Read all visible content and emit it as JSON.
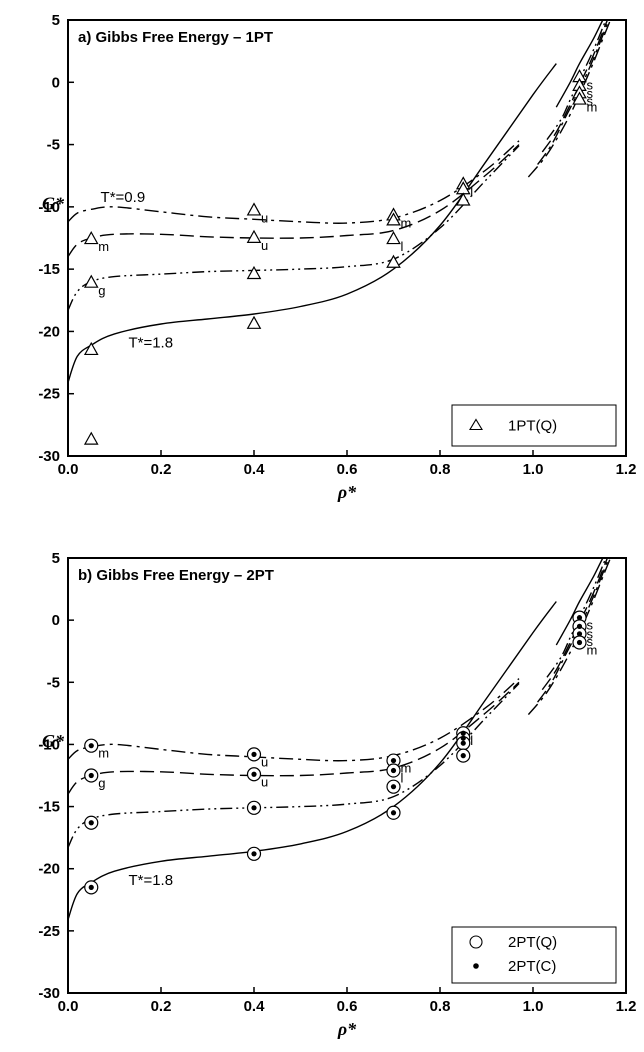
{
  "chart_data": [
    {
      "type": "line",
      "title": "a) Gibbs Free Energy – 1PT",
      "xlabel": "ρ*",
      "ylabel": "G*",
      "xlim": [
        0.0,
        1.2
      ],
      "ylim": [
        -30,
        5
      ],
      "xticks": [
        "0.0",
        "0.2",
        "0.4",
        "0.6",
        "0.8",
        "1.0",
        "1.2"
      ],
      "yticks": [
        "5",
        "0",
        "-5",
        "-10",
        "-15",
        "-20",
        "-25",
        "-30"
      ],
      "grid": false,
      "legend_position": "bottom-right",
      "legend": [
        {
          "name": "1PT(Q)",
          "marker": "triangle"
        }
      ],
      "annotations": [
        {
          "text": "T*=0.9",
          "x": 0.07,
          "y": -9.6
        },
        {
          "text": "T*=1.8",
          "x": 0.13,
          "y": -21.3
        }
      ],
      "curves": [
        {
          "style": "dash-dot",
          "x": [
            0.0,
            0.02,
            0.05,
            0.1,
            0.2,
            0.3,
            0.4,
            0.5,
            0.6,
            0.7,
            0.8,
            0.9,
            0.97
          ],
          "y": [
            -11.2,
            -10.5,
            -10.2,
            -10.0,
            -10.4,
            -10.8,
            -11.0,
            -11.2,
            -11.3,
            -10.9,
            -9.5,
            -7.0,
            -4.7
          ]
        },
        {
          "style": "dash",
          "x": [
            0.0,
            0.02,
            0.05,
            0.1,
            0.2,
            0.3,
            0.4,
            0.5,
            0.6,
            0.7,
            0.8,
            0.9,
            0.97
          ],
          "y": [
            -14.0,
            -13.0,
            -12.5,
            -12.2,
            -12.2,
            -12.4,
            -12.5,
            -12.5,
            -12.3,
            -11.9,
            -10.3,
            -7.4,
            -5.0
          ]
        },
        {
          "style": "dash-dot-dot",
          "x": [
            0.0,
            0.02,
            0.05,
            0.1,
            0.2,
            0.3,
            0.4,
            0.5,
            0.6,
            0.7,
            0.8,
            0.9,
            0.97
          ],
          "y": [
            -18.3,
            -16.8,
            -16.0,
            -15.6,
            -15.4,
            -15.2,
            -15.1,
            -15.0,
            -14.8,
            -14.2,
            -11.7,
            -7.8,
            -5.1
          ]
        },
        {
          "style": "solid",
          "x": [
            0.0,
            0.02,
            0.05,
            0.1,
            0.2,
            0.3,
            0.4,
            0.5,
            0.6,
            0.7,
            0.8,
            0.9,
            1.0,
            1.05
          ],
          "y": [
            -24.1,
            -22.0,
            -21.1,
            -20.2,
            -19.4,
            -19.0,
            -18.6,
            -18.0,
            -17.0,
            -15.0,
            -11.5,
            -6.3,
            -1.0,
            1.5
          ]
        },
        {
          "style": "dash-dot",
          "x": [
            0.99,
            1.03,
            1.07,
            1.1,
            1.13,
            1.16,
            1.18
          ],
          "y": [
            -7.6,
            -5.8,
            -3.3,
            -1.0,
            1.6,
            4.4,
            6.2
          ]
        },
        {
          "style": "dash-dot",
          "x": [
            1.01,
            1.04,
            1.07,
            1.1,
            1.13,
            1.16,
            1.18
          ],
          "y": [
            -6.6,
            -5.0,
            -2.8,
            -0.6,
            1.9,
            4.7,
            6.5
          ]
        },
        {
          "style": "dash",
          "x": [
            1.02,
            1.05,
            1.08,
            1.1,
            1.13,
            1.16,
            1.18
          ],
          "y": [
            -5.6,
            -4.0,
            -1.8,
            -0.2,
            2.2,
            5.0,
            6.8
          ]
        },
        {
          "style": "dash-dot-dot",
          "x": [
            1.03,
            1.06,
            1.08,
            1.1,
            1.13,
            1.16,
            1.18
          ],
          "y": [
            -4.6,
            -3.0,
            -1.4,
            0.2,
            2.6,
            5.3,
            7.1
          ]
        },
        {
          "style": "solid",
          "x": [
            1.05,
            1.08,
            1.1,
            1.13,
            1.15,
            1.17
          ],
          "y": [
            -2.0,
            0.0,
            1.5,
            3.5,
            5.0,
            6.5
          ]
        }
      ],
      "series": [
        {
          "name": "1PT(Q)",
          "marker": "triangle",
          "points": [
            {
              "x": 0.05,
              "y": -12.6,
              "label": "m"
            },
            {
              "x": 0.05,
              "y": -16.1,
              "label": "g"
            },
            {
              "x": 0.05,
              "y": -21.5,
              "label": ""
            },
            {
              "x": 0.05,
              "y": -28.7,
              "label": ""
            },
            {
              "x": 0.4,
              "y": -10.3,
              "label": "u"
            },
            {
              "x": 0.4,
              "y": -12.5,
              "label": "u"
            },
            {
              "x": 0.4,
              "y": -15.4,
              "label": ""
            },
            {
              "x": 0.4,
              "y": -19.4,
              "label": ""
            },
            {
              "x": 0.7,
              "y": -10.7,
              "label": "m"
            },
            {
              "x": 0.7,
              "y": -11.1,
              "label": ""
            },
            {
              "x": 0.7,
              "y": -12.6,
              "label": "l"
            },
            {
              "x": 0.7,
              "y": -14.5,
              "label": ""
            },
            {
              "x": 0.85,
              "y": -8.2,
              "label": "l"
            },
            {
              "x": 0.85,
              "y": -8.6,
              "label": ""
            },
            {
              "x": 0.85,
              "y": -9.5,
              "label": ""
            },
            {
              "x": 1.1,
              "y": 0.4,
              "label": "s"
            },
            {
              "x": 1.1,
              "y": -0.3,
              "label": "s"
            },
            {
              "x": 1.1,
              "y": -0.9,
              "label": "s"
            },
            {
              "x": 1.1,
              "y": -1.4,
              "label": "m"
            }
          ]
        }
      ]
    },
    {
      "type": "line",
      "title": "b) Gibbs Free Energy – 2PT",
      "xlabel": "ρ*",
      "ylabel": "G*",
      "xlim": [
        0.0,
        1.2
      ],
      "ylim": [
        -30,
        5
      ],
      "xticks": [
        "0.0",
        "0.2",
        "0.4",
        "0.6",
        "0.8",
        "1.0",
        "1.2"
      ],
      "yticks": [
        "5",
        "0",
        "-5",
        "-10",
        "-15",
        "-20",
        "-25",
        "-30"
      ],
      "grid": false,
      "legend_position": "bottom-right",
      "legend": [
        {
          "name": "2PT(Q)",
          "marker": "open-circle"
        },
        {
          "name": "2PT(C)",
          "marker": "dot"
        }
      ],
      "annotations": [
        {
          "text": "T*=1.8",
          "x": 0.13,
          "y": -21.3
        }
      ],
      "curves": [
        {
          "style": "dash-dot",
          "x": [
            0.0,
            0.02,
            0.05,
            0.1,
            0.2,
            0.3,
            0.4,
            0.5,
            0.6,
            0.7,
            0.8,
            0.9,
            0.97
          ],
          "y": [
            -11.2,
            -10.5,
            -10.2,
            -10.0,
            -10.4,
            -10.8,
            -11.0,
            -11.2,
            -11.3,
            -10.9,
            -9.5,
            -7.0,
            -4.7
          ]
        },
        {
          "style": "dash",
          "x": [
            0.0,
            0.02,
            0.05,
            0.1,
            0.2,
            0.3,
            0.4,
            0.5,
            0.6,
            0.7,
            0.8,
            0.9,
            0.97
          ],
          "y": [
            -14.0,
            -13.0,
            -12.5,
            -12.2,
            -12.2,
            -12.4,
            -12.5,
            -12.5,
            -12.3,
            -11.9,
            -10.3,
            -7.4,
            -5.0
          ]
        },
        {
          "style": "dash-dot-dot",
          "x": [
            0.0,
            0.02,
            0.05,
            0.1,
            0.2,
            0.3,
            0.4,
            0.5,
            0.6,
            0.7,
            0.8,
            0.9,
            0.97
          ],
          "y": [
            -18.3,
            -16.8,
            -16.0,
            -15.6,
            -15.4,
            -15.2,
            -15.1,
            -15.0,
            -14.8,
            -14.2,
            -11.7,
            -7.8,
            -5.1
          ]
        },
        {
          "style": "solid",
          "x": [
            0.0,
            0.02,
            0.05,
            0.1,
            0.2,
            0.3,
            0.4,
            0.5,
            0.6,
            0.7,
            0.8,
            0.9,
            1.0,
            1.05
          ],
          "y": [
            -24.1,
            -22.0,
            -21.1,
            -20.2,
            -19.4,
            -19.0,
            -18.6,
            -18.0,
            -17.0,
            -15.0,
            -11.5,
            -6.3,
            -1.0,
            1.5
          ]
        },
        {
          "style": "dash-dot",
          "x": [
            0.99,
            1.03,
            1.07,
            1.1,
            1.13,
            1.16,
            1.18
          ],
          "y": [
            -7.6,
            -5.8,
            -3.3,
            -1.0,
            1.6,
            4.4,
            6.2
          ]
        },
        {
          "style": "dash-dot",
          "x": [
            1.01,
            1.04,
            1.07,
            1.1,
            1.13,
            1.16,
            1.18
          ],
          "y": [
            -6.6,
            -5.0,
            -2.8,
            -0.6,
            1.9,
            4.7,
            6.5
          ]
        },
        {
          "style": "dash",
          "x": [
            1.02,
            1.05,
            1.08,
            1.1,
            1.13,
            1.16,
            1.18
          ],
          "y": [
            -5.6,
            -4.0,
            -1.8,
            -0.2,
            2.2,
            5.0,
            6.8
          ]
        },
        {
          "style": "dash-dot-dot",
          "x": [
            1.03,
            1.06,
            1.08,
            1.1,
            1.13,
            1.16,
            1.18
          ],
          "y": [
            -4.6,
            -3.0,
            -1.4,
            0.2,
            2.6,
            5.3,
            7.1
          ]
        },
        {
          "style": "solid",
          "x": [
            1.05,
            1.08,
            1.1,
            1.13,
            1.15,
            1.17
          ],
          "y": [
            -2.0,
            0.0,
            1.5,
            3.5,
            5.0,
            6.5
          ]
        }
      ],
      "series": [
        {
          "name": "2PT(Q)",
          "marker": "open-circle",
          "points": [
            {
              "x": 0.05,
              "y": -10.1,
              "label": "m"
            },
            {
              "x": 0.05,
              "y": -12.5,
              "label": "g"
            },
            {
              "x": 0.05,
              "y": -16.3,
              "label": ""
            },
            {
              "x": 0.05,
              "y": -21.5,
              "label": ""
            },
            {
              "x": 0.4,
              "y": -10.8,
              "label": "u"
            },
            {
              "x": 0.4,
              "y": -12.4,
              "label": "u"
            },
            {
              "x": 0.4,
              "y": -15.1,
              "label": ""
            },
            {
              "x": 0.4,
              "y": -18.8,
              "label": ""
            },
            {
              "x": 0.7,
              "y": -11.3,
              "label": "m"
            },
            {
              "x": 0.7,
              "y": -12.1,
              "label": "l"
            },
            {
              "x": 0.7,
              "y": -13.4,
              "label": ""
            },
            {
              "x": 0.7,
              "y": -15.5,
              "label": ""
            },
            {
              "x": 0.85,
              "y": -9.1,
              "label": "l"
            },
            {
              "x": 0.85,
              "y": -9.5,
              "label": ""
            },
            {
              "x": 0.85,
              "y": -9.9,
              "label": ""
            },
            {
              "x": 0.85,
              "y": -10.9,
              "label": ""
            },
            {
              "x": 1.1,
              "y": 0.2,
              "label": "s"
            },
            {
              "x": 1.1,
              "y": -0.5,
              "label": "s"
            },
            {
              "x": 1.1,
              "y": -1.1,
              "label": "s"
            },
            {
              "x": 1.1,
              "y": -1.8,
              "label": "m"
            }
          ]
        },
        {
          "name": "2PT(C)",
          "marker": "dot",
          "points": [
            {
              "x": 0.05,
              "y": -10.1
            },
            {
              "x": 0.05,
              "y": -12.5
            },
            {
              "x": 0.05,
              "y": -16.3
            },
            {
              "x": 0.05,
              "y": -21.5
            },
            {
              "x": 0.4,
              "y": -10.8
            },
            {
              "x": 0.4,
              "y": -12.4
            },
            {
              "x": 0.4,
              "y": -15.1
            },
            {
              "x": 0.4,
              "y": -18.8
            },
            {
              "x": 0.7,
              "y": -11.3
            },
            {
              "x": 0.7,
              "y": -12.1
            },
            {
              "x": 0.7,
              "y": -13.4
            },
            {
              "x": 0.7,
              "y": -15.5
            },
            {
              "x": 0.85,
              "y": -9.1
            },
            {
              "x": 0.85,
              "y": -9.5
            },
            {
              "x": 0.85,
              "y": -9.9
            },
            {
              "x": 0.85,
              "y": -10.9
            },
            {
              "x": 1.1,
              "y": 0.2
            },
            {
              "x": 1.1,
              "y": -0.5
            },
            {
              "x": 1.1,
              "y": -1.1
            },
            {
              "x": 1.1,
              "y": -1.8
            }
          ]
        }
      ]
    }
  ]
}
